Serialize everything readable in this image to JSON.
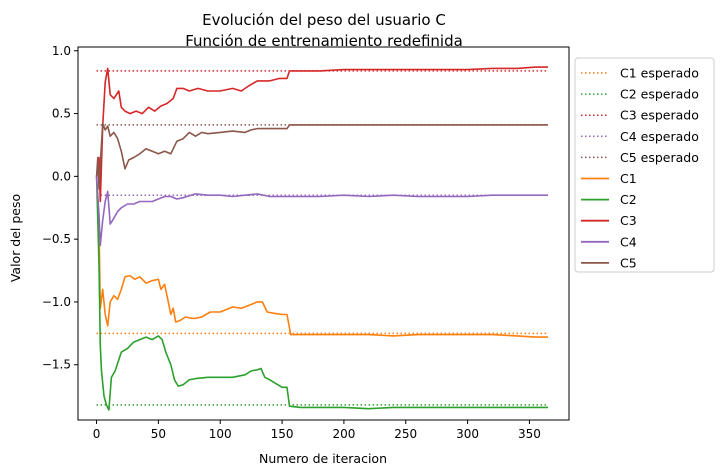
{
  "chart_data": {
    "type": "line",
    "title": "Evolución del peso del usuario C",
    "subtitle": "Función de entrenamiento redefinida",
    "xlabel": "Numero de iteracion",
    "ylabel": "Valor del peso",
    "xlim": [
      -15,
      382
    ],
    "ylim": [
      -1.94,
      1.03
    ],
    "xticks": [
      0,
      50,
      100,
      150,
      200,
      250,
      300,
      350
    ],
    "yticks": [
      1.0,
      0.5,
      0.0,
      -0.5,
      -1.0,
      -1.5
    ],
    "ytick_labels": [
      "1.0",
      "0.5",
      "0.0",
      "−0.5",
      "−1.0",
      "−1.5"
    ],
    "legend_position": "outside-right-top",
    "grid": false,
    "expected": [
      {
        "name": "C1 esperado",
        "color": "#ff7f0e",
        "value": -1.25
      },
      {
        "name": "C2 esperado",
        "color": "#2ca02c",
        "value": -1.82
      },
      {
        "name": "C3 esperado",
        "color": "#d62728",
        "value": 0.84
      },
      {
        "name": "C4 esperado",
        "color": "#9467bd",
        "value": -0.15
      },
      {
        "name": "C5 esperado",
        "color": "#8c564b",
        "value": 0.41
      }
    ],
    "series": [
      {
        "name": "C1",
        "color": "#ff7f0e",
        "points": [
          [
            0,
            0
          ],
          [
            2,
            -0.4
          ],
          [
            3,
            -1.05
          ],
          [
            5,
            -0.9
          ],
          [
            7,
            -1.1
          ],
          [
            9,
            -1.19
          ],
          [
            11,
            -1.0
          ],
          [
            14,
            -0.95
          ],
          [
            17,
            -0.98
          ],
          [
            20,
            -0.9
          ],
          [
            23,
            -0.8
          ],
          [
            27,
            -0.79
          ],
          [
            31,
            -0.82
          ],
          [
            35,
            -0.8
          ],
          [
            40,
            -0.85
          ],
          [
            45,
            -0.83
          ],
          [
            50,
            -0.82
          ],
          [
            52,
            -0.9
          ],
          [
            55,
            -0.86
          ],
          [
            58,
            -1.0
          ],
          [
            60,
            -1.1
          ],
          [
            62,
            -1.05
          ],
          [
            64,
            -1.16
          ],
          [
            67,
            -1.15
          ],
          [
            72,
            -1.12
          ],
          [
            77,
            -1.13
          ],
          [
            80,
            -1.13
          ],
          [
            85,
            -1.12
          ],
          [
            92,
            -1.08
          ],
          [
            100,
            -1.08
          ],
          [
            105,
            -1.06
          ],
          [
            110,
            -1.04
          ],
          [
            117,
            -1.05
          ],
          [
            125,
            -1.02
          ],
          [
            130,
            -1.0
          ],
          [
            134,
            -1.0
          ],
          [
            138,
            -1.08
          ],
          [
            143,
            -1.09
          ],
          [
            150,
            -1.1
          ],
          [
            154,
            -1.1
          ],
          [
            157,
            -1.26
          ],
          [
            165,
            -1.26
          ],
          [
            180,
            -1.26
          ],
          [
            200,
            -1.26
          ],
          [
            220,
            -1.26
          ],
          [
            240,
            -1.27
          ],
          [
            260,
            -1.26
          ],
          [
            280,
            -1.26
          ],
          [
            300,
            -1.26
          ],
          [
            320,
            -1.26
          ],
          [
            340,
            -1.27
          ],
          [
            355,
            -1.28
          ],
          [
            365,
            -1.28
          ]
        ]
      },
      {
        "name": "C2",
        "color": "#2ca02c",
        "points": [
          [
            0,
            0
          ],
          [
            2,
            -0.7
          ],
          [
            3,
            -1.35
          ],
          [
            4,
            -1.55
          ],
          [
            6,
            -1.75
          ],
          [
            8,
            -1.82
          ],
          [
            10,
            -1.86
          ],
          [
            12,
            -1.6
          ],
          [
            15,
            -1.55
          ],
          [
            20,
            -1.4
          ],
          [
            25,
            -1.37
          ],
          [
            30,
            -1.32
          ],
          [
            35,
            -1.3
          ],
          [
            40,
            -1.28
          ],
          [
            45,
            -1.3
          ],
          [
            50,
            -1.27
          ],
          [
            53,
            -1.3
          ],
          [
            56,
            -1.4
          ],
          [
            60,
            -1.5
          ],
          [
            63,
            -1.62
          ],
          [
            66,
            -1.67
          ],
          [
            70,
            -1.66
          ],
          [
            75,
            -1.62
          ],
          [
            80,
            -1.61
          ],
          [
            90,
            -1.6
          ],
          [
            100,
            -1.6
          ],
          [
            110,
            -1.6
          ],
          [
            120,
            -1.58
          ],
          [
            125,
            -1.55
          ],
          [
            130,
            -1.54
          ],
          [
            133,
            -1.53
          ],
          [
            136,
            -1.6
          ],
          [
            140,
            -1.62
          ],
          [
            145,
            -1.65
          ],
          [
            150,
            -1.68
          ],
          [
            154,
            -1.68
          ],
          [
            156,
            -1.83
          ],
          [
            165,
            -1.84
          ],
          [
            180,
            -1.84
          ],
          [
            200,
            -1.84
          ],
          [
            220,
            -1.85
          ],
          [
            240,
            -1.84
          ],
          [
            260,
            -1.84
          ],
          [
            280,
            -1.84
          ],
          [
            300,
            -1.84
          ],
          [
            320,
            -1.84
          ],
          [
            340,
            -1.84
          ],
          [
            355,
            -1.84
          ],
          [
            365,
            -1.84
          ]
        ]
      },
      {
        "name": "C3",
        "color": "#d62728",
        "points": [
          [
            0,
            0
          ],
          [
            2,
            0.15
          ],
          [
            3,
            -0.2
          ],
          [
            5,
            0.4
          ],
          [
            7,
            0.75
          ],
          [
            9,
            0.86
          ],
          [
            11,
            0.65
          ],
          [
            14,
            0.62
          ],
          [
            18,
            0.68
          ],
          [
            20,
            0.55
          ],
          [
            23,
            0.52
          ],
          [
            27,
            0.5
          ],
          [
            32,
            0.52
          ],
          [
            37,
            0.5
          ],
          [
            42,
            0.55
          ],
          [
            47,
            0.52
          ],
          [
            52,
            0.56
          ],
          [
            57,
            0.58
          ],
          [
            62,
            0.62
          ],
          [
            65,
            0.7
          ],
          [
            70,
            0.7
          ],
          [
            75,
            0.68
          ],
          [
            82,
            0.7
          ],
          [
            90,
            0.68
          ],
          [
            100,
            0.68
          ],
          [
            110,
            0.7
          ],
          [
            117,
            0.68
          ],
          [
            123,
            0.72
          ],
          [
            130,
            0.76
          ],
          [
            140,
            0.76
          ],
          [
            148,
            0.78
          ],
          [
            154,
            0.78
          ],
          [
            156,
            0.84
          ],
          [
            165,
            0.84
          ],
          [
            180,
            0.84
          ],
          [
            200,
            0.85
          ],
          [
            220,
            0.85
          ],
          [
            240,
            0.85
          ],
          [
            260,
            0.85
          ],
          [
            280,
            0.85
          ],
          [
            300,
            0.85
          ],
          [
            320,
            0.86
          ],
          [
            340,
            0.86
          ],
          [
            355,
            0.87
          ],
          [
            365,
            0.87
          ]
        ]
      },
      {
        "name": "C4",
        "color": "#9467bd",
        "points": [
          [
            0,
            0
          ],
          [
            2,
            -0.3
          ],
          [
            3,
            -0.55
          ],
          [
            5,
            -0.35
          ],
          [
            7,
            -0.2
          ],
          [
            9,
            -0.12
          ],
          [
            11,
            -0.38
          ],
          [
            13,
            -0.35
          ],
          [
            17,
            -0.28
          ],
          [
            20,
            -0.25
          ],
          [
            25,
            -0.22
          ],
          [
            30,
            -0.22
          ],
          [
            35,
            -0.2
          ],
          [
            40,
            -0.2
          ],
          [
            45,
            -0.2
          ],
          [
            50,
            -0.18
          ],
          [
            55,
            -0.16
          ],
          [
            60,
            -0.16
          ],
          [
            65,
            -0.18
          ],
          [
            70,
            -0.17
          ],
          [
            80,
            -0.14
          ],
          [
            90,
            -0.15
          ],
          [
            100,
            -0.15
          ],
          [
            110,
            -0.16
          ],
          [
            120,
            -0.15
          ],
          [
            130,
            -0.14
          ],
          [
            140,
            -0.16
          ],
          [
            150,
            -0.16
          ],
          [
            160,
            -0.16
          ],
          [
            180,
            -0.16
          ],
          [
            200,
            -0.15
          ],
          [
            220,
            -0.16
          ],
          [
            240,
            -0.15
          ],
          [
            260,
            -0.16
          ],
          [
            280,
            -0.16
          ],
          [
            300,
            -0.16
          ],
          [
            320,
            -0.15
          ],
          [
            340,
            -0.15
          ],
          [
            355,
            -0.15
          ],
          [
            365,
            -0.15
          ]
        ]
      },
      {
        "name": "C5",
        "color": "#8c564b",
        "points": [
          [
            0,
            0
          ],
          [
            1,
            0.15
          ],
          [
            2,
            -0.1
          ],
          [
            3,
            0.1
          ],
          [
            5,
            0.42
          ],
          [
            7,
            0.37
          ],
          [
            9,
            0.4
          ],
          [
            11,
            0.32
          ],
          [
            14,
            0.35
          ],
          [
            17,
            0.3
          ],
          [
            20,
            0.2
          ],
          [
            23,
            0.06
          ],
          [
            26,
            0.13
          ],
          [
            30,
            0.15
          ],
          [
            35,
            0.18
          ],
          [
            40,
            0.22
          ],
          [
            45,
            0.2
          ],
          [
            50,
            0.18
          ],
          [
            55,
            0.2
          ],
          [
            60,
            0.18
          ],
          [
            65,
            0.28
          ],
          [
            70,
            0.3
          ],
          [
            75,
            0.35
          ],
          [
            80,
            0.32
          ],
          [
            85,
            0.35
          ],
          [
            90,
            0.34
          ],
          [
            100,
            0.35
          ],
          [
            110,
            0.36
          ],
          [
            120,
            0.35
          ],
          [
            125,
            0.37
          ],
          [
            130,
            0.38
          ],
          [
            140,
            0.38
          ],
          [
            148,
            0.38
          ],
          [
            154,
            0.38
          ],
          [
            156,
            0.41
          ],
          [
            165,
            0.41
          ],
          [
            180,
            0.41
          ],
          [
            200,
            0.41
          ],
          [
            220,
            0.41
          ],
          [
            240,
            0.41
          ],
          [
            260,
            0.41
          ],
          [
            280,
            0.41
          ],
          [
            300,
            0.41
          ],
          [
            320,
            0.41
          ],
          [
            340,
            0.41
          ],
          [
            355,
            0.41
          ],
          [
            365,
            0.41
          ]
        ]
      }
    ]
  }
}
